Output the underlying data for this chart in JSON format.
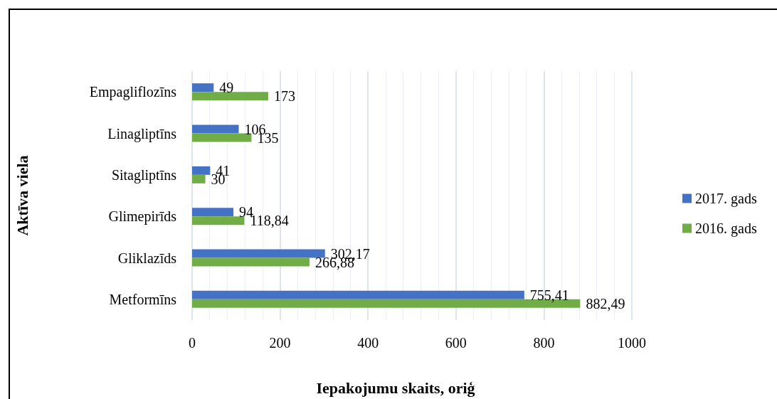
{
  "chart_data": {
    "type": "bar",
    "orientation": "horizontal",
    "xlabel": "Iepakojumu skaits, oriģ",
    "ylabel": "Aktīva viela",
    "categories": [
      "Empagliflozīns",
      "Linagliptīns",
      "Sitagliptīns",
      "Glimepirīds",
      "Gliklazīds",
      "Metformīns"
    ],
    "series": [
      {
        "name": "2017. gads",
        "color": "#4472c4",
        "values": [
          49,
          106,
          41,
          94,
          302.17,
          755.41
        ],
        "value_labels": [
          "49",
          "106",
          "41",
          "94",
          "302,17",
          "755,41"
        ]
      },
      {
        "name": "2016. gads",
        "color": "#70ad47",
        "values": [
          173,
          135,
          30,
          118.84,
          266.88,
          882.49
        ],
        "value_labels": [
          "173",
          "135",
          "30",
          "118,84",
          "266,88",
          "882,49"
        ]
      }
    ],
    "xlim": [
      0,
      1000
    ],
    "xticks": [
      0,
      200,
      400,
      600,
      800,
      1000
    ],
    "grid": "x",
    "legend": "right"
  }
}
